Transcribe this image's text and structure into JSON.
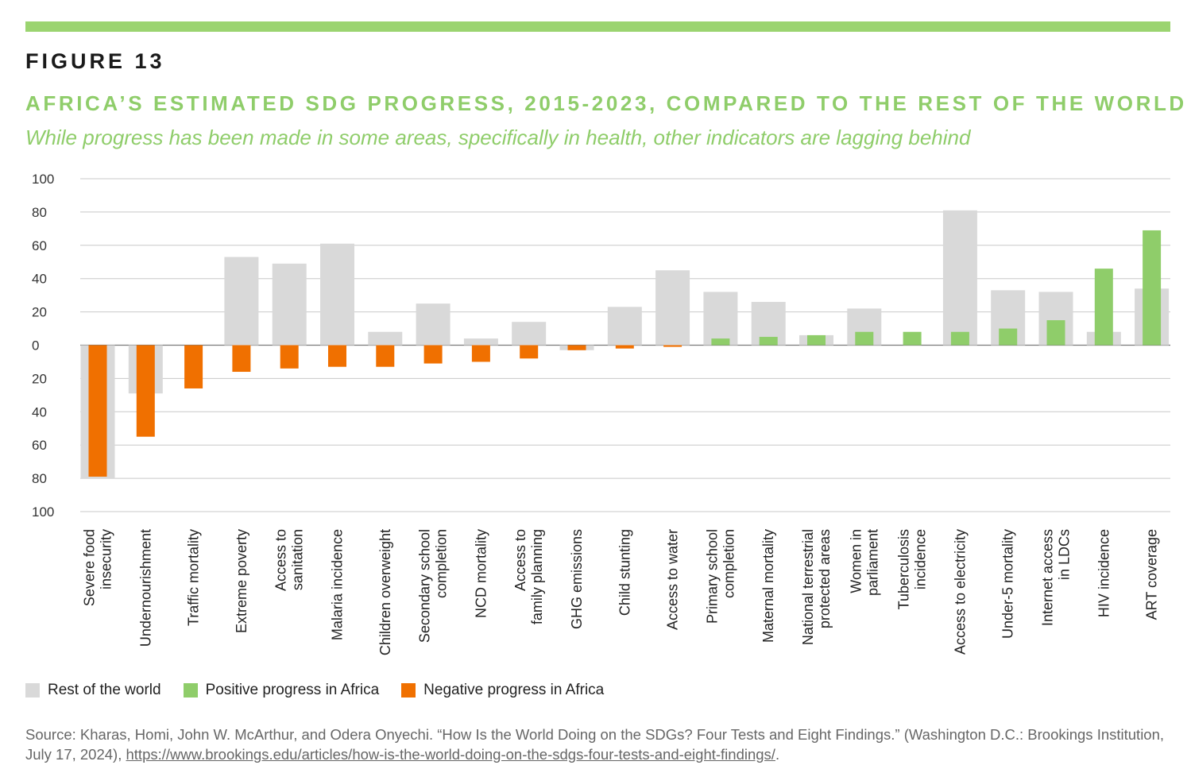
{
  "figure_label": "FIGURE 13",
  "title": "AFRICA’S ESTIMATED SDG PROGRESS, 2015-2023, COMPARED TO THE REST OF THE WORLD",
  "subtitle": "While progress has been made in some areas, specifically in health, other indicators are lagging behind",
  "colors": {
    "accent": "#9bd470",
    "title": "#8fcd6a",
    "rest_of_world": "#d9d9d9",
    "positive": "#8fcd6a",
    "negative": "#f07000",
    "grid": "#c8c8c8"
  },
  "legend": [
    {
      "label": "Rest of the world",
      "color": "#d9d9d9"
    },
    {
      "label": "Positive progress in Africa",
      "color": "#8fcd6a"
    },
    {
      "label": "Negative progress in Africa",
      "color": "#f07000"
    }
  ],
  "source": {
    "text": "Source: Kharas, Homi, John W. McArthur, and Odera Onyechi. “How Is the World Doing on the SDGs? Four Tests and Eight Findings.” (Washington D.C.: Brookings Institution, July 17, 2024), ",
    "link": "https://www.brookings.edu/articles/how-is-the-world-doing-on-the-sdgs-four-tests-and-eight-findings/",
    "end": "."
  },
  "chart_data": {
    "type": "bar",
    "ylim": [
      -100,
      100
    ],
    "yticks": [
      100,
      80,
      60,
      40,
      20,
      0,
      -20,
      -40,
      -60,
      -80,
      -100
    ],
    "ytick_labels": [
      "100",
      "80",
      "60",
      "40",
      "20",
      "0",
      "20",
      "40",
      "60",
      "80",
      "100"
    ],
    "grid": true,
    "legend_position": "bottom-left",
    "categories": [
      "Severe food insecurity",
      "Undernourishment",
      "Traffic mortality",
      "Extreme poverty",
      "Access to sanitation",
      "Malaria incidence",
      "Children overweight",
      "Secondary school completion",
      "NCD mortality",
      "Access to family planning",
      "GHG emissions",
      "Child stunting",
      "Access to water",
      "Primary school completion",
      "Maternal mortality",
      "National terrestrial protected areas",
      "Women in parliament",
      "Tuberculosis incidence",
      "Access to electricity",
      "Under-5 mortality",
      "Internet access in LDCs",
      "HIV incidence",
      "ART coverage"
    ],
    "category_lines": [
      [
        "Severe food",
        "insecurity"
      ],
      [
        "Undernourishment"
      ],
      [
        "Traffic mortality"
      ],
      [
        "Extreme poverty"
      ],
      [
        "Access to",
        "sanitation"
      ],
      [
        "Malaria incidence"
      ],
      [
        "Children overweight"
      ],
      [
        "Secondary school",
        "completion"
      ],
      [
        "NCD mortality"
      ],
      [
        "Access to",
        "family planning"
      ],
      [
        "GHG emissions"
      ],
      [
        "Child stunting"
      ],
      [
        "Access to water"
      ],
      [
        "Primary school",
        "completion"
      ],
      [
        "Maternal mortality"
      ],
      [
        "National terrestrial",
        "protected areas"
      ],
      [
        "Women in",
        "parliament"
      ],
      [
        "Tuberculosis",
        "incidence"
      ],
      [
        "Access to electricity"
      ],
      [
        "Under-5 mortality"
      ],
      [
        "Internet access",
        "in LDCs"
      ],
      [
        "HIV incidence"
      ],
      [
        "ART coverage"
      ]
    ],
    "series": [
      {
        "name": "Rest of the world",
        "values": [
          -80,
          -29,
          0,
          53,
          49,
          61,
          8,
          25,
          4,
          14,
          -3,
          23,
          45,
          32,
          26,
          6,
          22,
          0,
          81,
          33,
          32,
          8,
          34
        ]
      },
      {
        "name": "Africa",
        "values": [
          -79,
          -55,
          -26,
          -16,
          -14,
          -13,
          -13,
          -11,
          -10,
          -8,
          -3,
          -2,
          -1,
          4,
          5,
          6,
          8,
          8,
          8,
          10,
          15,
          46,
          69
        ]
      }
    ]
  }
}
